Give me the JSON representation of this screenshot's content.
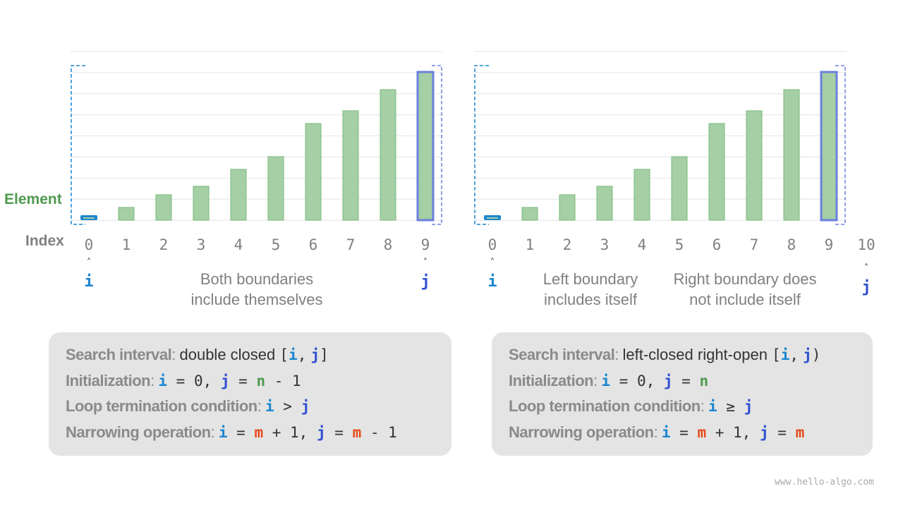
{
  "colors": {
    "bar_fill": "#a5cfa5",
    "bar_stroke": "#7ab87a",
    "i": "#1a86d0",
    "j": "#2f4fd0",
    "j_bar": "#6b80e0",
    "element": "#4f9a4f",
    "n": "#4f9a4f",
    "m": "#e64a19",
    "label": "#808080"
  },
  "axis": {
    "element_label": "Element",
    "index_label": "Index"
  },
  "array_relative_values": [
    7,
    18,
    36,
    48,
    72,
    90,
    137,
    155,
    185,
    210
  ],
  "left": {
    "indices": [
      "0",
      "1",
      "2",
      "3",
      "4",
      "5",
      "6",
      "7",
      "8",
      "9"
    ],
    "i_label": "i",
    "j_label": "j",
    "caption": [
      "Both boundaries",
      "include themselves"
    ],
    "box": {
      "l1_key": "Search interval",
      "l1_text": "double closed ",
      "l1_expr": [
        "[",
        "i",
        ",",
        "j",
        "]"
      ],
      "l2_key": "Initialization",
      "l2_expr": [
        "i",
        " = 0, ",
        "j",
        " = ",
        "n",
        " - 1"
      ],
      "l3_key": "Loop termination condition",
      "l3_expr": [
        "i",
        " > ",
        "j"
      ],
      "l4_key": "Narrowing operation",
      "l4_expr": [
        "i",
        " = ",
        "m",
        " + 1, ",
        "j",
        " = ",
        "m",
        " - 1"
      ]
    }
  },
  "right": {
    "indices": [
      "0",
      "1",
      "2",
      "3",
      "4",
      "5",
      "6",
      "7",
      "8",
      "9",
      "10"
    ],
    "i_label": "i",
    "j_label": "j",
    "caption_left": [
      "Left boundary",
      "includes itself"
    ],
    "caption_right": [
      "Right boundary does",
      "not include itself"
    ],
    "box": {
      "l1_key": "Search interval",
      "l1_text": "left-closed right-open ",
      "l1_expr": [
        "[",
        "i",
        ",",
        "j",
        ")"
      ],
      "l2_key": "Initialization",
      "l2_expr": [
        "i",
        " = 0, ",
        "j",
        " = ",
        "n"
      ],
      "l3_key": "Loop termination condition",
      "l3_expr": [
        "i",
        " ≥ ",
        "j"
      ],
      "l4_key": "Narrowing operation",
      "l4_expr": [
        "i",
        " = ",
        "m",
        " + 1, ",
        "j",
        " = ",
        "m"
      ]
    }
  },
  "watermark": "www.hello-algo.com"
}
